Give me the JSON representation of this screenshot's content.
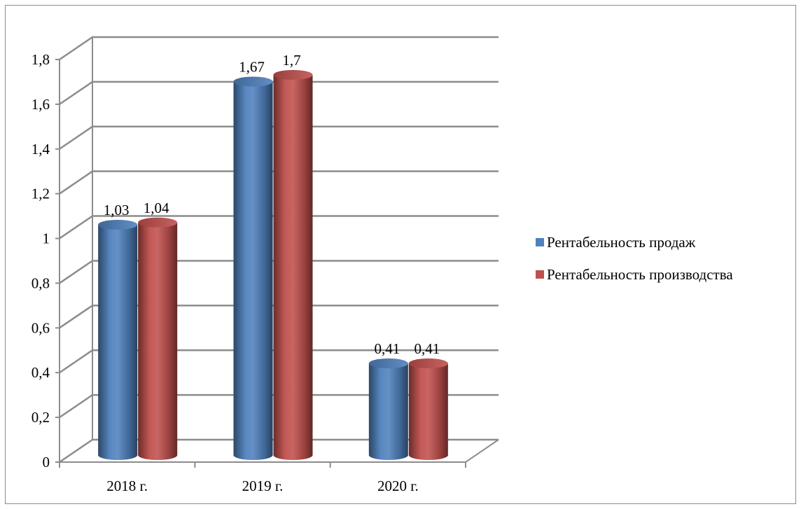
{
  "chart_data": {
    "type": "bar",
    "categories": [
      "2018 г.",
      "2019 г.",
      "2020 г."
    ],
    "series": [
      {
        "name": "Рентабельность продаж",
        "values": [
          1.03,
          1.67,
          0.41
        ],
        "labels": [
          "1,03",
          "1,67",
          "0,41"
        ],
        "color": "#4f81bd"
      },
      {
        "name": "Рентабельность производства",
        "values": [
          1.04,
          1.7,
          0.41
        ],
        "labels": [
          "1,04",
          "1,7",
          "0,41"
        ],
        "color": "#c0504d"
      }
    ],
    "ylim": [
      0,
      1.8
    ],
    "yticks": [
      0,
      0.2,
      0.4,
      0.6,
      0.8,
      1,
      1.2,
      1.4,
      1.6,
      1.8
    ],
    "ytick_labels": [
      "0",
      "0,2",
      "0,4",
      "0,6",
      "0,8",
      "1",
      "1,2",
      "1,4",
      "1,6",
      "1,8"
    ],
    "title": "",
    "xlabel": "",
    "ylabel": "",
    "grid": true,
    "legend_position": "right",
    "style": "3d-cylinder"
  }
}
